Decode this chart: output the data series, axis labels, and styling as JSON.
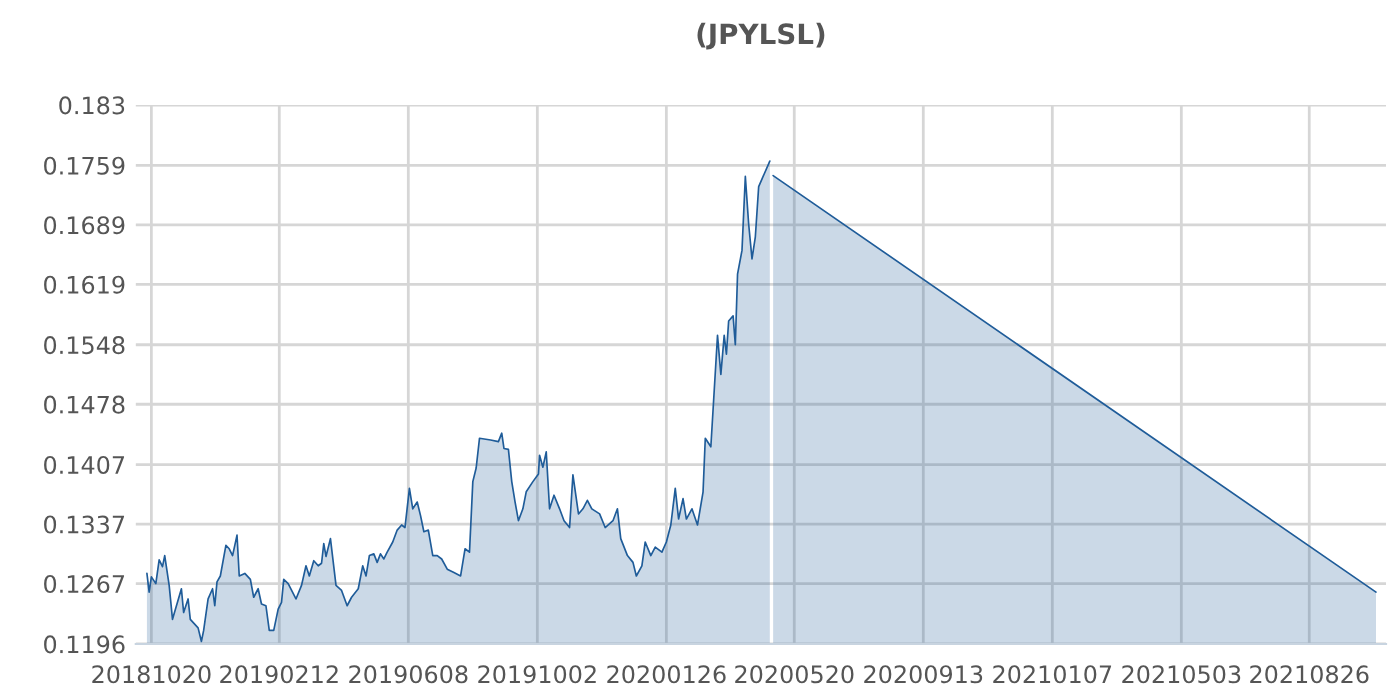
{
  "chart_data": {
    "type": "area",
    "title": "(JPYLSL)",
    "x": [
      "2018-10-16",
      "2018-10-18",
      "2018-10-20",
      "2018-10-24",
      "2018-10-27",
      "2018-10-30",
      "2018-11-01",
      "2018-11-05",
      "2018-11-08",
      "2018-11-16",
      "2018-11-18",
      "2018-11-22",
      "2018-11-24",
      "2018-12-01",
      "2018-12-04",
      "2018-12-06",
      "2018-12-10",
      "2018-12-14",
      "2018-12-16",
      "2018-12-18",
      "2018-12-21",
      "2018-12-26",
      "2018-12-29",
      "2019-01-01",
      "2019-01-05",
      "2019-01-07",
      "2019-01-12",
      "2019-01-17",
      "2019-01-20",
      "2019-01-24",
      "2019-01-27",
      "2019-01-31",
      "2019-02-03",
      "2019-02-07",
      "2019-02-11",
      "2019-02-14",
      "2019-02-16",
      "2019-02-20",
      "2019-02-27",
      "2019-03-04",
      "2019-03-08",
      "2019-03-11",
      "2019-03-15",
      "2019-03-19",
      "2019-03-22",
      "2019-03-24",
      "2019-03-26",
      "2019-03-30",
      "2019-04-04",
      "2019-04-09",
      "2019-04-14",
      "2019-04-18",
      "2019-04-24",
      "2019-04-28",
      "2019-05-01",
      "2019-05-04",
      "2019-05-08",
      "2019-05-11",
      "2019-05-14",
      "2019-05-17",
      "2019-05-20",
      "2019-05-25",
      "2019-05-29",
      "2019-06-02",
      "2019-06-05",
      "2019-06-09",
      "2019-06-12",
      "2019-06-16",
      "2019-06-19",
      "2019-06-22",
      "2019-06-26",
      "2019-06-30",
      "2019-07-04",
      "2019-07-08",
      "2019-07-13",
      "2019-07-19",
      "2019-07-25",
      "2019-07-29",
      "2019-08-02",
      "2019-08-05",
      "2019-08-08",
      "2019-08-11",
      "2019-08-21",
      "2019-08-28",
      "2019-08-31",
      "2019-09-02",
      "2019-09-06",
      "2019-09-09",
      "2019-09-12",
      "2019-09-15",
      "2019-09-19",
      "2019-09-22",
      "2019-09-28",
      "2019-10-03",
      "2019-10-04",
      "2019-10-07",
      "2019-10-10",
      "2019-10-13",
      "2019-10-17",
      "2019-10-22",
      "2019-10-26",
      "2019-10-31",
      "2019-11-03",
      "2019-11-08",
      "2019-11-12",
      "2019-11-16",
      "2019-11-20",
      "2019-11-27",
      "2019-12-02",
      "2019-12-09",
      "2019-12-13",
      "2019-12-16",
      "2019-12-22",
      "2019-12-27",
      "2019-12-30",
      "2020-01-04",
      "2020-01-07",
      "2020-01-12",
      "2020-01-16",
      "2020-01-22",
      "2020-01-26",
      "2020-01-30",
      "2020-02-03",
      "2020-02-06",
      "2020-02-10",
      "2020-02-13",
      "2020-02-18",
      "2020-02-23",
      "2020-02-28",
      "2020-03-01",
      "2020-03-06",
      "2020-03-12",
      "2020-03-15",
      "2020-03-18",
      "2020-03-20",
      "2020-03-22",
      "2020-03-26",
      "2020-03-28",
      "2020-03-30",
      "2020-04-03",
      "2020-04-06",
      "2020-04-09",
      "2020-04-12",
      "2020-04-15",
      "2020-04-18",
      "2020-04-28",
      "2020-04-30",
      "2020-05-01",
      "2021-10-25"
    ],
    "series": [
      {
        "color": "#1f5c99",
        "values": [
          0.1279,
          0.1257,
          0.1275,
          0.1267,
          0.1295,
          0.1287,
          0.13,
          0.1265,
          0.1225,
          0.1261,
          0.1233,
          0.1249,
          0.1225,
          0.1215,
          0.1199,
          0.1212,
          0.1249,
          0.1261,
          0.1241,
          0.1269,
          0.1276,
          0.1312,
          0.1308,
          0.13,
          0.1324,
          0.1276,
          0.1279,
          0.1272,
          0.1251,
          0.1261,
          0.1243,
          0.1241,
          0.1212,
          0.1212,
          0.1237,
          0.1245,
          0.1272,
          0.1267,
          0.1249,
          0.1265,
          0.1288,
          0.1276,
          0.1294,
          0.1288,
          0.1291,
          0.1314,
          0.1299,
          0.132,
          0.1265,
          0.1259,
          0.1241,
          0.1251,
          0.1261,
          0.1288,
          0.1276,
          0.13,
          0.1302,
          0.1292,
          0.1302,
          0.1296,
          0.1304,
          0.1316,
          0.133,
          0.1336,
          0.1333,
          0.1379,
          0.1355,
          0.1363,
          0.1347,
          0.1328,
          0.133,
          0.13,
          0.13,
          0.1296,
          0.1284,
          0.128,
          0.1276,
          0.1308,
          0.1304,
          0.1387,
          0.1403,
          0.1438,
          0.1436,
          0.1434,
          0.1444,
          0.1426,
          0.1425,
          0.1387,
          0.1363,
          0.1341,
          0.1355,
          0.1375,
          0.1387,
          0.1396,
          0.1418,
          0.1404,
          0.1422,
          0.1355,
          0.1371,
          0.1355,
          0.1341,
          0.1333,
          0.1395,
          0.1349,
          0.1355,
          0.1365,
          0.1355,
          0.1349,
          0.1333,
          0.1341,
          0.1355,
          0.132,
          0.13,
          0.1292,
          0.1276,
          0.1288,
          0.1316,
          0.13,
          0.131,
          0.1304,
          0.1316,
          0.1336,
          0.1379,
          0.1343,
          0.1367,
          0.1343,
          0.1355,
          0.1336,
          0.1375,
          0.1438,
          0.1428,
          0.1559,
          0.1513,
          0.1559,
          0.1537,
          0.1576,
          0.1582,
          0.1548,
          0.1631,
          0.1659,
          0.1746,
          0.169,
          0.1649,
          0.1675,
          0.1734,
          0.1764,
          null,
          0.1747,
          0.1257
        ]
      }
    ],
    "xlim": [
      "2018-10-06",
      "2021-11-03"
    ],
    "xticks": [
      {
        "value": "2018-10-20",
        "label": "20181020"
      },
      {
        "value": "2019-02-12",
        "label": "20190212"
      },
      {
        "value": "2019-06-08",
        "label": "20190608"
      },
      {
        "value": "2019-10-02",
        "label": "20191002"
      },
      {
        "value": "2020-01-26",
        "label": "20200126"
      },
      {
        "value": "2020-05-20",
        "label": "20200520"
      },
      {
        "value": "2020-09-13",
        "label": "20200913"
      },
      {
        "value": "2021-01-07",
        "label": "20210107"
      },
      {
        "value": "2021-05-03",
        "label": "20210503"
      },
      {
        "value": "2021-08-26",
        "label": "20210826"
      }
    ],
    "ylim": [
      0.1196,
      0.183
    ],
    "yticks": [
      0.1196,
      0.1267,
      0.1337,
      0.1407,
      0.1478,
      0.1548,
      0.1619,
      0.1689,
      0.1759,
      0.183
    ],
    "grid": true
  }
}
